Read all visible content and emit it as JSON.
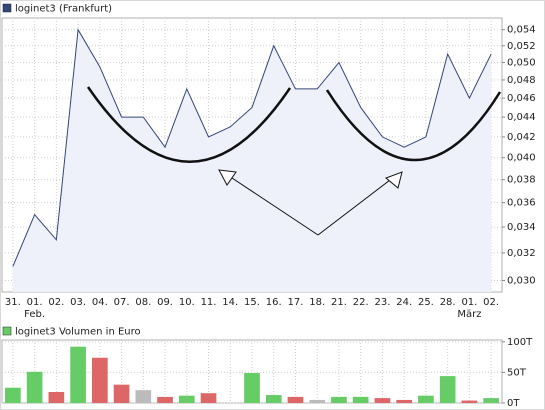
{
  "chart_data": [
    {
      "type": "area",
      "categories": [
        "31.",
        "01.",
        "02.",
        "03.",
        "04.",
        "07.",
        "08.",
        "09.",
        "10.",
        "11.",
        "14.",
        "15.",
        "16.",
        "17.",
        "18.",
        "21.",
        "22.",
        "23.",
        "24.",
        "25.",
        "28.",
        "01.",
        "02."
      ],
      "x_sublabels": [
        null,
        "Feb.",
        null,
        null,
        null,
        null,
        null,
        null,
        null,
        null,
        null,
        null,
        null,
        null,
        null,
        null,
        null,
        null,
        null,
        null,
        null,
        "März",
        null
      ],
      "series": [
        {
          "name": "loginet3 (Frankfurt)",
          "color": "#34467a",
          "values": [
            0.031,
            0.035,
            0.033,
            0.054,
            0.0495,
            0.044,
            0.044,
            0.041,
            0.047,
            0.042,
            0.043,
            0.045,
            0.052,
            0.047,
            0.047,
            0.05,
            0.045,
            0.042,
            0.041,
            0.042,
            0.051,
            0.046,
            0.051
          ]
        }
      ],
      "log": true,
      "grid": true,
      "ylim": [
        0.0292,
        0.0555
      ],
      "yticks": [
        {
          "value": 0.03,
          "label": "0,030"
        },
        {
          "value": 0.032,
          "label": "0,032"
        },
        {
          "value": 0.034,
          "label": "0,034"
        },
        {
          "value": 0.036,
          "label": "0,036"
        },
        {
          "value": 0.038,
          "label": "0,038"
        },
        {
          "value": 0.04,
          "label": "0,040"
        },
        {
          "value": 0.042,
          "label": "0,042"
        },
        {
          "value": 0.044,
          "label": "0,044"
        },
        {
          "value": 0.046,
          "label": "0,046"
        },
        {
          "value": 0.048,
          "label": "0,048"
        },
        {
          "value": 0.05,
          "label": "0,050"
        },
        {
          "value": 0.052,
          "label": "0,052"
        },
        {
          "value": 0.054,
          "label": "0,054"
        }
      ]
    },
    {
      "type": "bar",
      "series": [
        {
          "name": "loginet3 Volumen in Euro",
          "color": "#66cc66",
          "values": [
            25,
            51,
            18,
            92,
            74,
            30,
            21,
            10,
            12,
            16,
            null,
            49,
            13,
            10,
            5,
            10,
            10,
            8,
            5,
            12,
            44,
            4,
            8
          ],
          "colors": [
            "#66cc66",
            "#66cc66",
            "#dd6666",
            "#66cc66",
            "#dd6666",
            "#dd6666",
            "#bbbbbb",
            "#dd6666",
            "#66cc66",
            "#dd6666",
            null,
            "#66cc66",
            "#66cc66",
            "#dd6666",
            "#bbbbbb",
            "#66cc66",
            "#66cc66",
            "#dd6666",
            "#dd6666",
            "#66cc66",
            "#66cc66",
            "#dd6666",
            "#66cc66"
          ]
        }
      ],
      "grid": true,
      "ylim": [
        0,
        103
      ],
      "yticks": [
        {
          "value": 0,
          "label": "0T"
        },
        {
          "value": 50,
          "label": "50T"
        },
        {
          "value": 100,
          "label": "100T"
        }
      ]
    }
  ]
}
